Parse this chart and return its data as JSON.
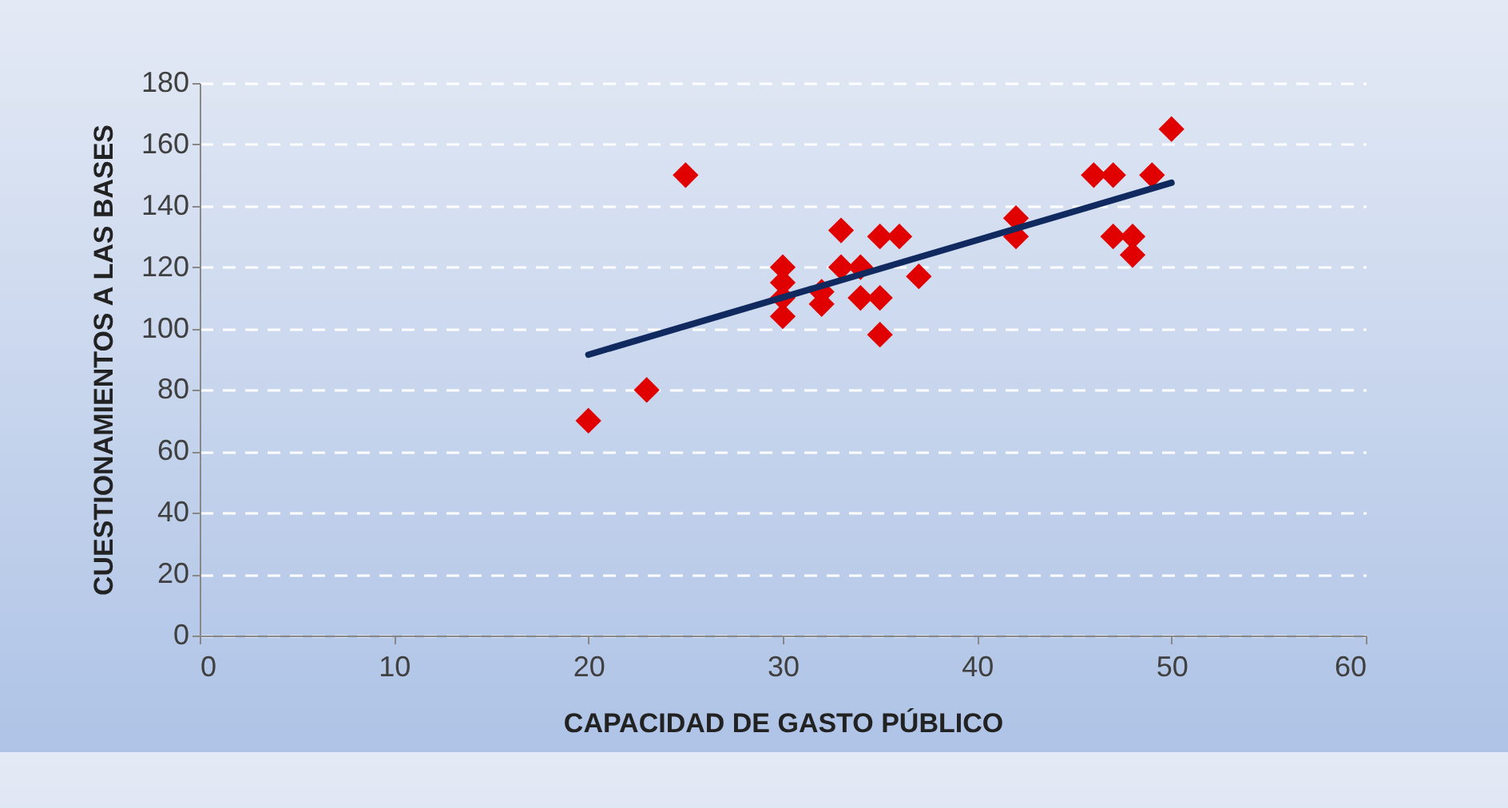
{
  "chart_data": {
    "type": "scatter",
    "xlabel": "CAPACIDAD DE GASTO PÚBLICO",
    "ylabel": "CUESTIONAMIENTOS A LAS BASES",
    "xlim": [
      0,
      60
    ],
    "xticks": [
      0,
      10,
      20,
      30,
      40,
      50,
      60
    ],
    "ylim": [
      0,
      180
    ],
    "yticks": [
      0,
      20,
      40,
      60,
      80,
      100,
      120,
      140,
      160,
      180
    ],
    "grid": "y",
    "legend": false,
    "marker": "diamond",
    "series": [
      {
        "color": "#e00000",
        "x": [
          20,
          23,
          25,
          30,
          30,
          30,
          30,
          32,
          32,
          33,
          33,
          34,
          34,
          35,
          35,
          35,
          36,
          37,
          42,
          42,
          46,
          47,
          47,
          48,
          48,
          49,
          50
        ],
        "values": [
          70,
          80,
          150,
          120,
          115,
          110,
          104,
          108,
          112,
          132,
          120,
          120,
          110,
          130,
          110,
          98,
          130,
          117,
          136,
          130,
          150,
          150,
          130,
          130,
          124,
          150,
          165
        ]
      },
      {
        "type": "line",
        "marker": "none",
        "color": "#102a60",
        "x": [
          20,
          50
        ],
        "values": [
          91.5,
          147.5
        ]
      }
    ]
  }
}
